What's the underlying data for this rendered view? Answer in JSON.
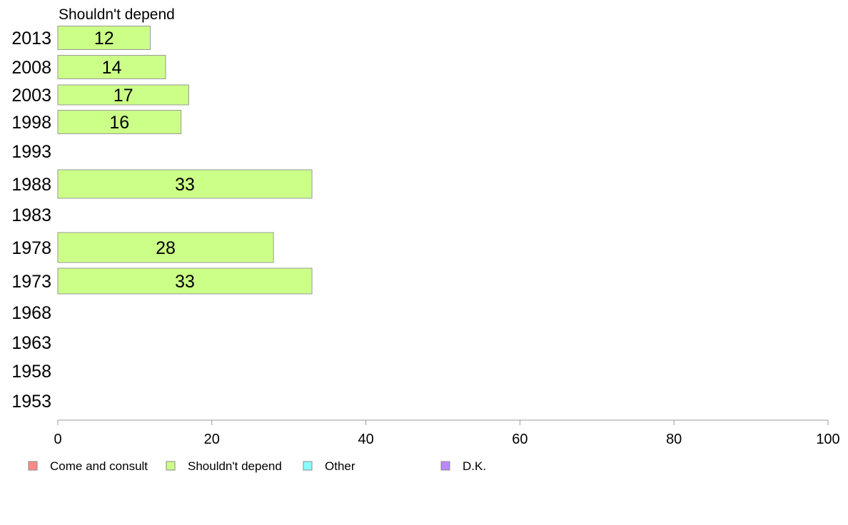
{
  "chart_data": {
    "type": "bar",
    "orientation": "horizontal",
    "title": "Shouldn't depend",
    "categories": [
      "2013",
      "2008",
      "2003",
      "1998",
      "1993",
      "1988",
      "1983",
      "1978",
      "1973",
      "1968",
      "1963",
      "1958",
      "1953"
    ],
    "series": [
      {
        "name": "Shouldn't depend",
        "values": [
          12,
          14,
          17,
          16,
          null,
          33,
          null,
          28,
          33,
          null,
          null,
          null,
          null
        ],
        "color": "#ccff88"
      }
    ],
    "xlim": [
      0,
      100
    ],
    "xticks": [
      0,
      20,
      40,
      60,
      80,
      100
    ],
    "grid": false,
    "legend": {
      "placement": "bottom",
      "items": [
        {
          "label": "Come and consult",
          "color": "#ff8a86"
        },
        {
          "label": "Shouldn't depend",
          "color": "#ccff88"
        },
        {
          "label": "Other",
          "color": "#88ffff"
        },
        {
          "label": "D.K.",
          "color": "#bb88ff"
        }
      ]
    }
  }
}
